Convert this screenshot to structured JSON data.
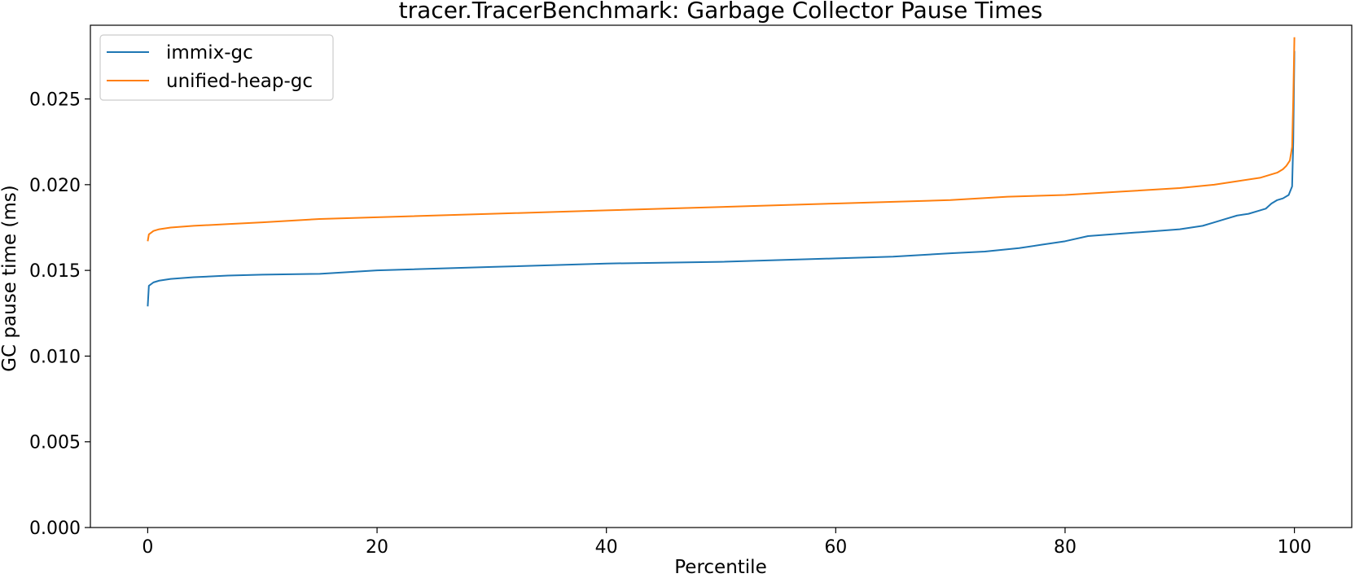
{
  "chart_data": {
    "type": "line",
    "title": "tracer.TracerBenchmark: Garbage Collector Pause Times",
    "xlabel": "Percentile",
    "ylabel": "GC pause time (ms)",
    "xlim": [
      -5,
      105
    ],
    "ylim": [
      0.0,
      0.0293
    ],
    "xticks": [
      0,
      20,
      40,
      60,
      80,
      100
    ],
    "yticks": [
      0.0,
      0.005,
      0.01,
      0.015,
      0.02,
      0.025
    ],
    "xtick_labels": [
      "0",
      "20",
      "40",
      "60",
      "80",
      "100"
    ],
    "ytick_labels": [
      "0.000",
      "0.005",
      "0.010",
      "0.015",
      "0.020",
      "0.025"
    ],
    "grid": false,
    "legend": "top-left",
    "series": [
      {
        "name": "immix-gc",
        "color": "#1f77b4",
        "x": [
          0,
          0.1,
          0.5,
          1,
          2,
          4,
          7,
          10,
          15,
          20,
          30,
          40,
          50,
          60,
          65,
          70,
          73,
          76,
          78,
          80,
          82,
          84,
          86,
          88,
          90,
          92,
          93,
          94,
          95,
          96,
          97,
          97.5,
          98,
          98.5,
          99,
          99.5,
          99.8,
          99.9,
          100
        ],
        "values": [
          0.0129,
          0.0141,
          0.0143,
          0.0144,
          0.0145,
          0.0146,
          0.0147,
          0.01475,
          0.0148,
          0.015,
          0.0152,
          0.0154,
          0.0155,
          0.0157,
          0.0158,
          0.016,
          0.0161,
          0.0163,
          0.0165,
          0.0167,
          0.017,
          0.0171,
          0.0172,
          0.0173,
          0.0174,
          0.0176,
          0.0178,
          0.018,
          0.0182,
          0.0183,
          0.0185,
          0.0186,
          0.0189,
          0.0191,
          0.0192,
          0.0194,
          0.0199,
          0.0225,
          0.0278
        ]
      },
      {
        "name": "unified-heap-gc",
        "color": "#ff7f0e",
        "x": [
          0,
          0.1,
          0.5,
          1,
          2,
          4,
          7,
          10,
          15,
          20,
          30,
          40,
          50,
          60,
          70,
          75,
          80,
          85,
          90,
          93,
          95,
          97,
          98,
          98.5,
          99,
          99.3,
          99.6,
          99.8,
          99.9,
          100
        ],
        "values": [
          0.0167,
          0.0171,
          0.0173,
          0.0174,
          0.0175,
          0.0176,
          0.0177,
          0.0178,
          0.018,
          0.0181,
          0.0183,
          0.0185,
          0.0187,
          0.0189,
          0.0191,
          0.0193,
          0.0194,
          0.0196,
          0.0198,
          0.02,
          0.0202,
          0.0204,
          0.0206,
          0.0207,
          0.0209,
          0.0211,
          0.0214,
          0.0222,
          0.025,
          0.0286
        ]
      }
    ]
  }
}
